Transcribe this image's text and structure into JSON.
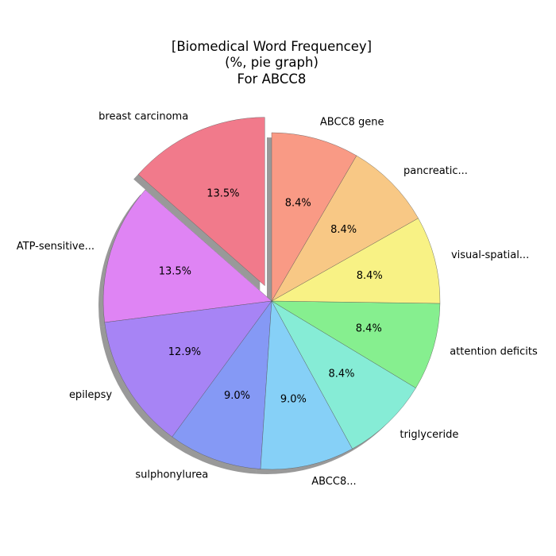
{
  "chart_data": {
    "type": "pie",
    "title": [
      "[Biomedical Word Frequencey]",
      "(%, pie graph)",
      "For ABCC8"
    ],
    "start_angle_deg": 90,
    "direction": "counterclockwise",
    "exploded": [
      "breast carcinoma"
    ],
    "shadow": true,
    "slices": [
      {
        "label": "breast carcinoma",
        "value": 13.5,
        "display": "13.5%",
        "color": "#f17a8b"
      },
      {
        "label": "ATP-sensitive...",
        "value": 13.5,
        "display": "13.5%",
        "color": "#df84f4"
      },
      {
        "label": "epilepsy",
        "value": 12.9,
        "display": "12.9%",
        "color": "#a784f5"
      },
      {
        "label": "sulphonylurea",
        "value": 9.0,
        "display": "9.0%",
        "color": "#8599f5"
      },
      {
        "label": "ABCC8...",
        "value": 9.0,
        "display": "9.0%",
        "color": "#86d0f7"
      },
      {
        "label": "triglyceride",
        "value": 8.4,
        "display": "8.4%",
        "color": "#86ecd6"
      },
      {
        "label": "attention deficits",
        "value": 8.4,
        "display": "8.4%",
        "color": "#86ef8f"
      },
      {
        "label": "visual-spatial...",
        "value": 8.4,
        "display": "8.4%",
        "color": "#f8f285"
      },
      {
        "label": "pancreatic...",
        "value": 8.4,
        "display": "8.4%",
        "color": "#f8c885"
      },
      {
        "label": "ABCC8 gene",
        "value": 8.4,
        "display": "8.4%",
        "color": "#f99a85"
      }
    ]
  }
}
